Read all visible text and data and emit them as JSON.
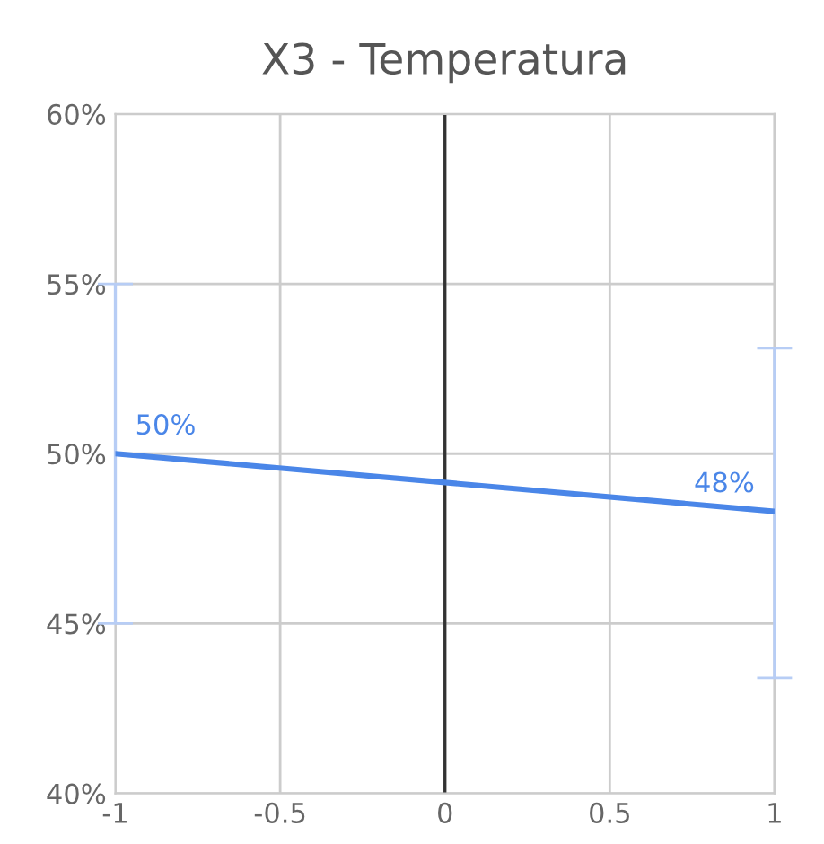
{
  "chart_data": {
    "type": "line",
    "title": "X3 - Temperatura",
    "x": [
      -1,
      1
    ],
    "series": [
      {
        "color": "#4a86e8",
        "values": [
          50,
          48.3
        ],
        "errors": [
          [
            45,
            55
          ],
          [
            43.4,
            53.1
          ]
        ],
        "value_labels": [
          "50%",
          "48%"
        ]
      }
    ],
    "xlim": [
      -1,
      1
    ],
    "xticks": [
      -1,
      -0.5,
      0,
      0.5,
      1
    ],
    "ylim": [
      40,
      60
    ],
    "yticks": [
      {
        "value": 40,
        "label": "40%"
      },
      {
        "value": 45,
        "label": "45%"
      },
      {
        "value": 50,
        "label": "50%"
      },
      {
        "value": 55,
        "label": "55%"
      },
      {
        "value": 60,
        "label": "60%"
      }
    ],
    "ref_lines": [
      {
        "axis": "x",
        "value": 0,
        "color": "#333333"
      }
    ],
    "grid": true,
    "legend": false,
    "marker": "none",
    "line_style": "solid"
  }
}
